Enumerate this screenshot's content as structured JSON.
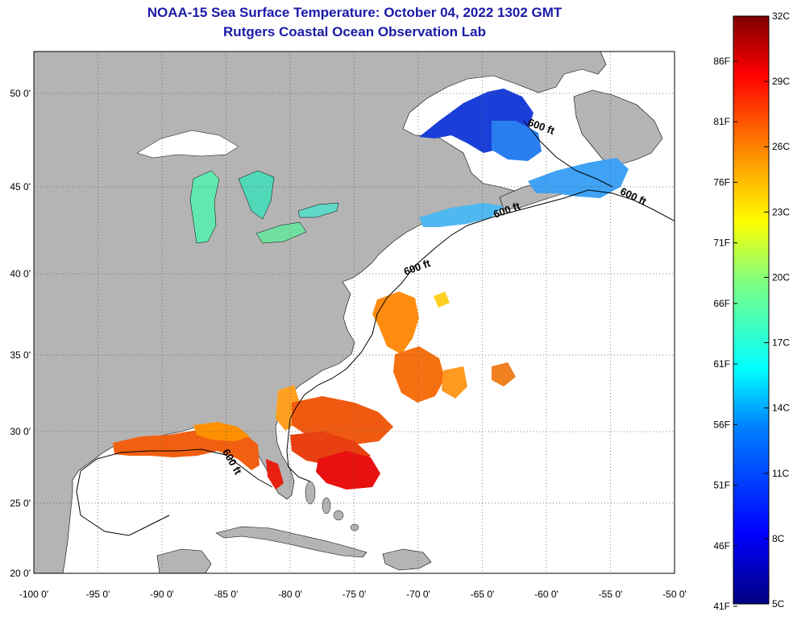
{
  "title": "NOAA-15 Sea Surface Temperature:  October 04, 2022 1302 GMT",
  "subtitle": "Rutgers Coastal Ocean Observation Lab",
  "map": {
    "lat_labels": [
      {
        "lat": 50,
        "text": "50 0'"
      },
      {
        "lat": 45,
        "text": "45 0'"
      },
      {
        "lat": 40,
        "text": "40 0'"
      },
      {
        "lat": 35,
        "text": "35 0'"
      },
      {
        "lat": 30,
        "text": "30 0'"
      },
      {
        "lat": 25,
        "text": "25 0'"
      },
      {
        "lat": 20,
        "text": "20 0'"
      }
    ],
    "lon_labels": [
      {
        "lon": -100,
        "text": "-100 0'"
      },
      {
        "lon": -95,
        "text": "-95 0'"
      },
      {
        "lon": -90,
        "text": "-90 0'"
      },
      {
        "lon": -85,
        "text": "-85 0'"
      },
      {
        "lon": -80,
        "text": "-80 0'"
      },
      {
        "lon": -75,
        "text": "-75 0'"
      },
      {
        "lon": -70,
        "text": "-70 0'"
      },
      {
        "lon": -65,
        "text": "-65 0'"
      },
      {
        "lon": -60,
        "text": "-60 0'"
      },
      {
        "lon": -55,
        "text": "-55 0'"
      },
      {
        "lon": -50,
        "text": "-50 0'"
      }
    ],
    "isobath_labels": [
      {
        "text": "600 ft",
        "lon": -61.5,
        "lat": 48.3
      },
      {
        "text": "600 ft",
        "lon": -54.3,
        "lat": 44.6
      },
      {
        "text": "600 ft",
        "lon": -64.0,
        "lat": 43.2
      },
      {
        "text": "600 ft",
        "lon": -71.0,
        "lat": 39.9
      },
      {
        "text": "600 ft",
        "lon": -85.3,
        "lat": 28.6
      }
    ]
  },
  "colorbar": {
    "celsius": [
      "32C",
      "29C",
      "26C",
      "23C",
      "20C",
      "17C",
      "14C",
      "11C",
      "8C",
      "5C"
    ],
    "fahrenheit": [
      "86F",
      "81F",
      "76F",
      "71F",
      "66F",
      "61F",
      "56F",
      "51F",
      "46F",
      "41F"
    ]
  },
  "colors": {
    "land": "#b4b4b4",
    "title": "#1a1aa8"
  }
}
